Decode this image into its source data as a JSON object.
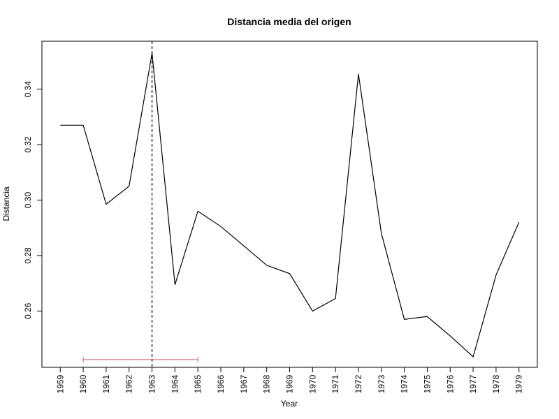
{
  "chart_data": {
    "type": "line",
    "title": "Distancia media del origen",
    "xlabel": "Year",
    "ylabel": "Distancia",
    "x": [
      1959,
      1960,
      1961,
      1962,
      1963,
      1964,
      1965,
      1966,
      1967,
      1968,
      1969,
      1970,
      1971,
      1972,
      1973,
      1974,
      1975,
      1976,
      1977,
      1978,
      1979
    ],
    "x_tick_labels": [
      "1959",
      "1960",
      "1961",
      "1962",
      "1963",
      "1964",
      "1965",
      "1966",
      "1967",
      "1968",
      "1969",
      "1970",
      "1971",
      "1972",
      "1973",
      "1974",
      "1975",
      "1976",
      "1977",
      "1978",
      "1979"
    ],
    "values": [
      0.327,
      0.327,
      0.2985,
      0.305,
      0.353,
      0.2695,
      0.296,
      0.2905,
      0.2835,
      0.2765,
      0.2735,
      0.26,
      0.2645,
      0.3455,
      0.288,
      0.257,
      0.258,
      0.251,
      0.2435,
      0.273,
      0.292
    ],
    "y_ticks": [
      0.26,
      0.28,
      0.3,
      0.32,
      0.34
    ],
    "y_tick_labels": [
      "0.26",
      "0.28",
      "0.30",
      "0.32",
      "0.34"
    ],
    "xlim": [
      1958.2,
      1979.8
    ],
    "ylim": [
      0.2397,
      0.3573
    ],
    "grid": false,
    "series_color": "#000000",
    "vline": {
      "x": 1963,
      "style": "dashed",
      "color": "#000000"
    },
    "interval": {
      "start": 1960,
      "end": 1965,
      "y": 0.2425,
      "color": "#cd5c6a"
    }
  }
}
